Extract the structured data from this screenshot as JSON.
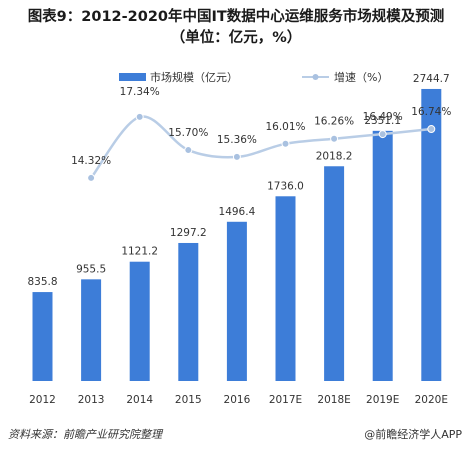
{
  "header": {
    "title_line1": "图表9：2012-2020年中国IT数据中心运维服务市场规模及预测",
    "title_line2": "（单位：亿元，%）"
  },
  "footer": {
    "source": "资料来源：前瞻产业研究院整理",
    "brand": "@前瞻经济学人APP"
  },
  "colors": {
    "bar": "#3d7dd8",
    "line": "#b9cde6",
    "marker": "#a9c1e0"
  },
  "chart_data": {
    "type": "bar",
    "categories": [
      "2012",
      "2013",
      "2014",
      "2015",
      "2016",
      "2017E",
      "2018E",
      "2019E",
      "2020E"
    ],
    "series": [
      {
        "name": "市场规模（亿元）",
        "type": "bar",
        "values": [
          835.8,
          955.5,
          1121.2,
          1297.2,
          1496.4,
          1736.0,
          2018.2,
          2351.1,
          2744.7
        ],
        "labels": [
          "835.8",
          "955.5",
          "1121.2",
          "1297.2",
          "1496.4",
          "1736.0",
          "2018.2",
          "2351.1",
          "2744.7"
        ]
      },
      {
        "name": "增速（%）",
        "type": "line",
        "values": [
          null,
          14.32,
          17.34,
          15.7,
          15.36,
          16.01,
          16.26,
          16.49,
          16.74
        ],
        "labels": [
          "",
          "14.32%",
          "17.34%",
          "15.70%",
          "15.36%",
          "16.01%",
          "16.26%",
          "16.49%",
          "16.74%"
        ]
      }
    ],
    "legend": "top-center",
    "grid": false
  }
}
